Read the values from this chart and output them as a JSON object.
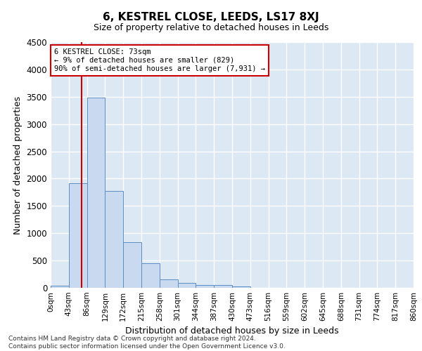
{
  "title": "6, KESTREL CLOSE, LEEDS, LS17 8XJ",
  "subtitle": "Size of property relative to detached houses in Leeds",
  "xlabel": "Distribution of detached houses by size in Leeds",
  "ylabel": "Number of detached properties",
  "bar_values": [
    40,
    1920,
    3480,
    1770,
    840,
    455,
    160,
    95,
    55,
    50,
    30,
    0,
    0,
    0,
    0,
    0,
    0,
    0,
    0,
    0
  ],
  "bin_edges": [
    0,
    43,
    86,
    129,
    172,
    215,
    258,
    301,
    344,
    387,
    430,
    473,
    516,
    559,
    602,
    645,
    688,
    731,
    774,
    817,
    860
  ],
  "tick_labels": [
    "0sqm",
    "43sqm",
    "86sqm",
    "129sqm",
    "172sqm",
    "215sqm",
    "258sqm",
    "301sqm",
    "344sqm",
    "387sqm",
    "430sqm",
    "473sqm",
    "516sqm",
    "559sqm",
    "602sqm",
    "645sqm",
    "688sqm",
    "731sqm",
    "774sqm",
    "817sqm",
    "860sqm"
  ],
  "bar_color": "#c9d9f0",
  "bar_edge_color": "#5b8ec4",
  "bg_color": "#dde8f5",
  "grid_color": "#ffffff",
  "vline_x": 73,
  "vline_color": "#cc0000",
  "annotation_text": "6 KESTREL CLOSE: 73sqm\n← 9% of detached houses are smaller (829)\n90% of semi-detached houses are larger (7,931) →",
  "annotation_box_color": "#cc0000",
  "ylim": [
    0,
    4500
  ],
  "yticks": [
    0,
    500,
    1000,
    1500,
    2000,
    2500,
    3000,
    3500,
    4000,
    4500
  ],
  "footer_line1": "Contains HM Land Registry data © Crown copyright and database right 2024.",
  "footer_line2": "Contains public sector information licensed under the Open Government Licence v3.0."
}
